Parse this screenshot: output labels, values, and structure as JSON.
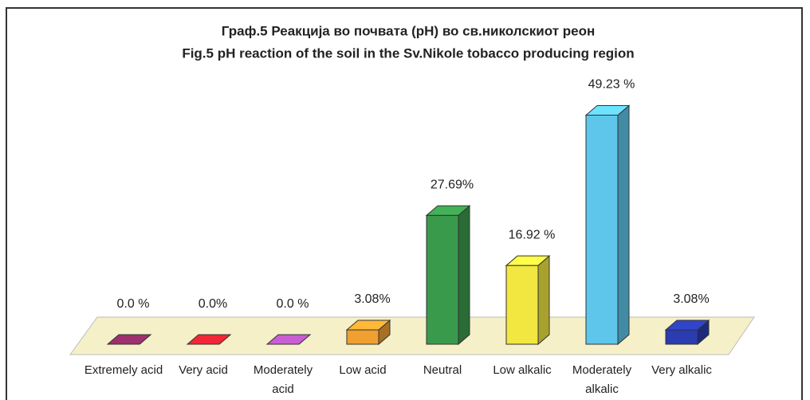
{
  "chart_data": {
    "type": "bar3d",
    "title": "Граф.5 Реакција во почвата (pH) во св.николскиот реон",
    "subtitle": "Fig.5 pH reaction of the soil in the Sv.Nikole tobacco producing region",
    "categories": [
      "Extremely acid",
      "Very acid",
      "Moderately acid",
      "Low acid",
      "Neutral",
      "Low alkalic",
      "Moderately alkalic",
      "Very alkalic"
    ],
    "values": [
      0,
      0,
      0,
      3.08,
      27.69,
      16.92,
      49.23,
      3.08
    ],
    "value_labels": [
      "0.0 %",
      "0.0%",
      "0.0 %",
      "3.08%",
      "27.69%",
      "16.92 %",
      "49.23 %",
      "3.08%"
    ],
    "colors": [
      "#8a2a60",
      "#d42030",
      "#b050b8",
      "#f0a030",
      "#3a9a4c",
      "#f2e640",
      "#5ec6ea",
      "#2a3cb0"
    ]
  }
}
